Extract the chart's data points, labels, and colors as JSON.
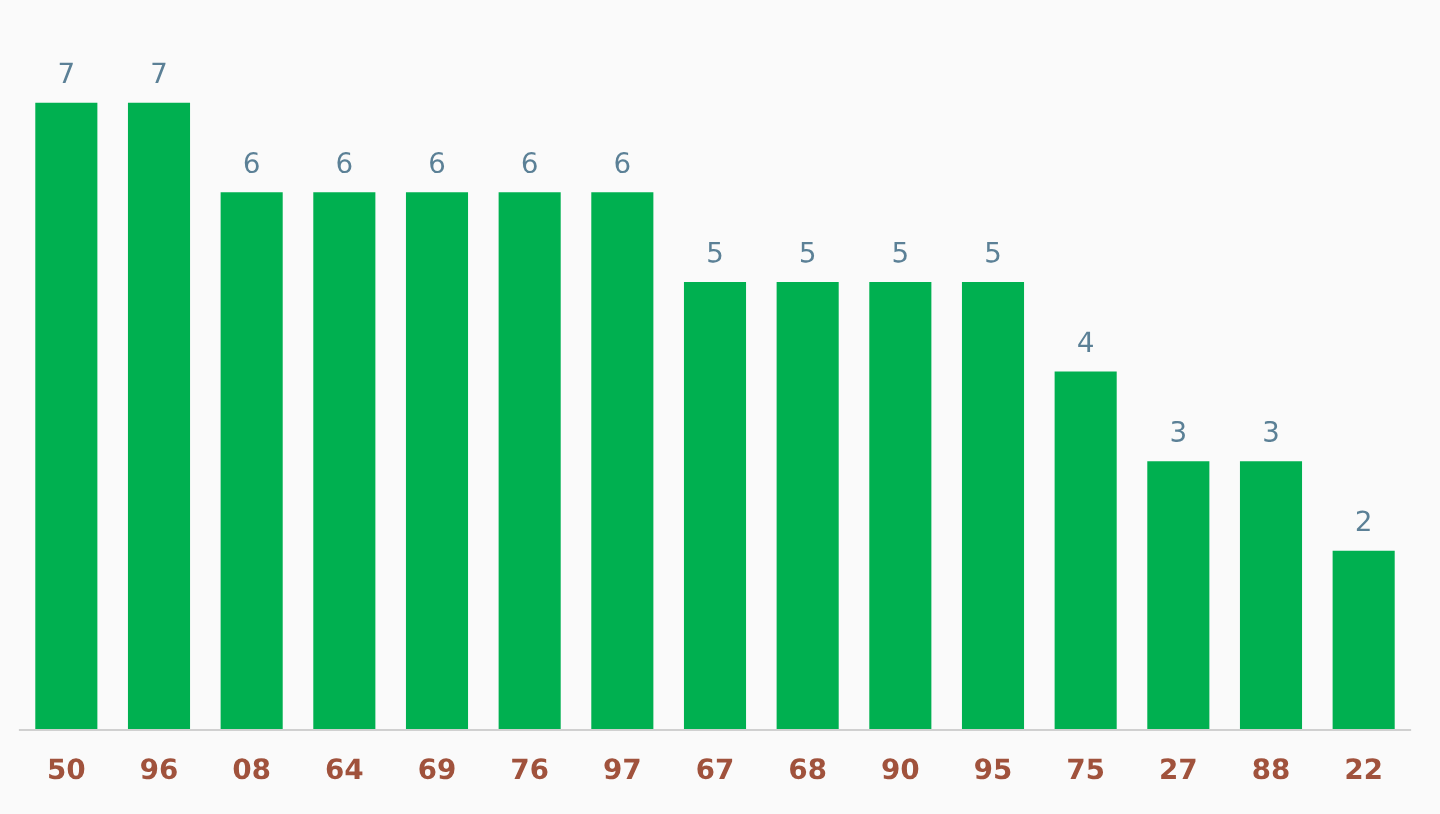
{
  "chart_data": {
    "type": "bar",
    "categories": [
      "50",
      "96",
      "08",
      "64",
      "69",
      "76",
      "97",
      "67",
      "68",
      "90",
      "95",
      "75",
      "27",
      "88",
      "22"
    ],
    "values": [
      7,
      7,
      6,
      6,
      6,
      6,
      6,
      5,
      5,
      5,
      5,
      4,
      3,
      3,
      2
    ],
    "color": "#00b050",
    "data_labels": true,
    "grid": false,
    "legend": false
  }
}
